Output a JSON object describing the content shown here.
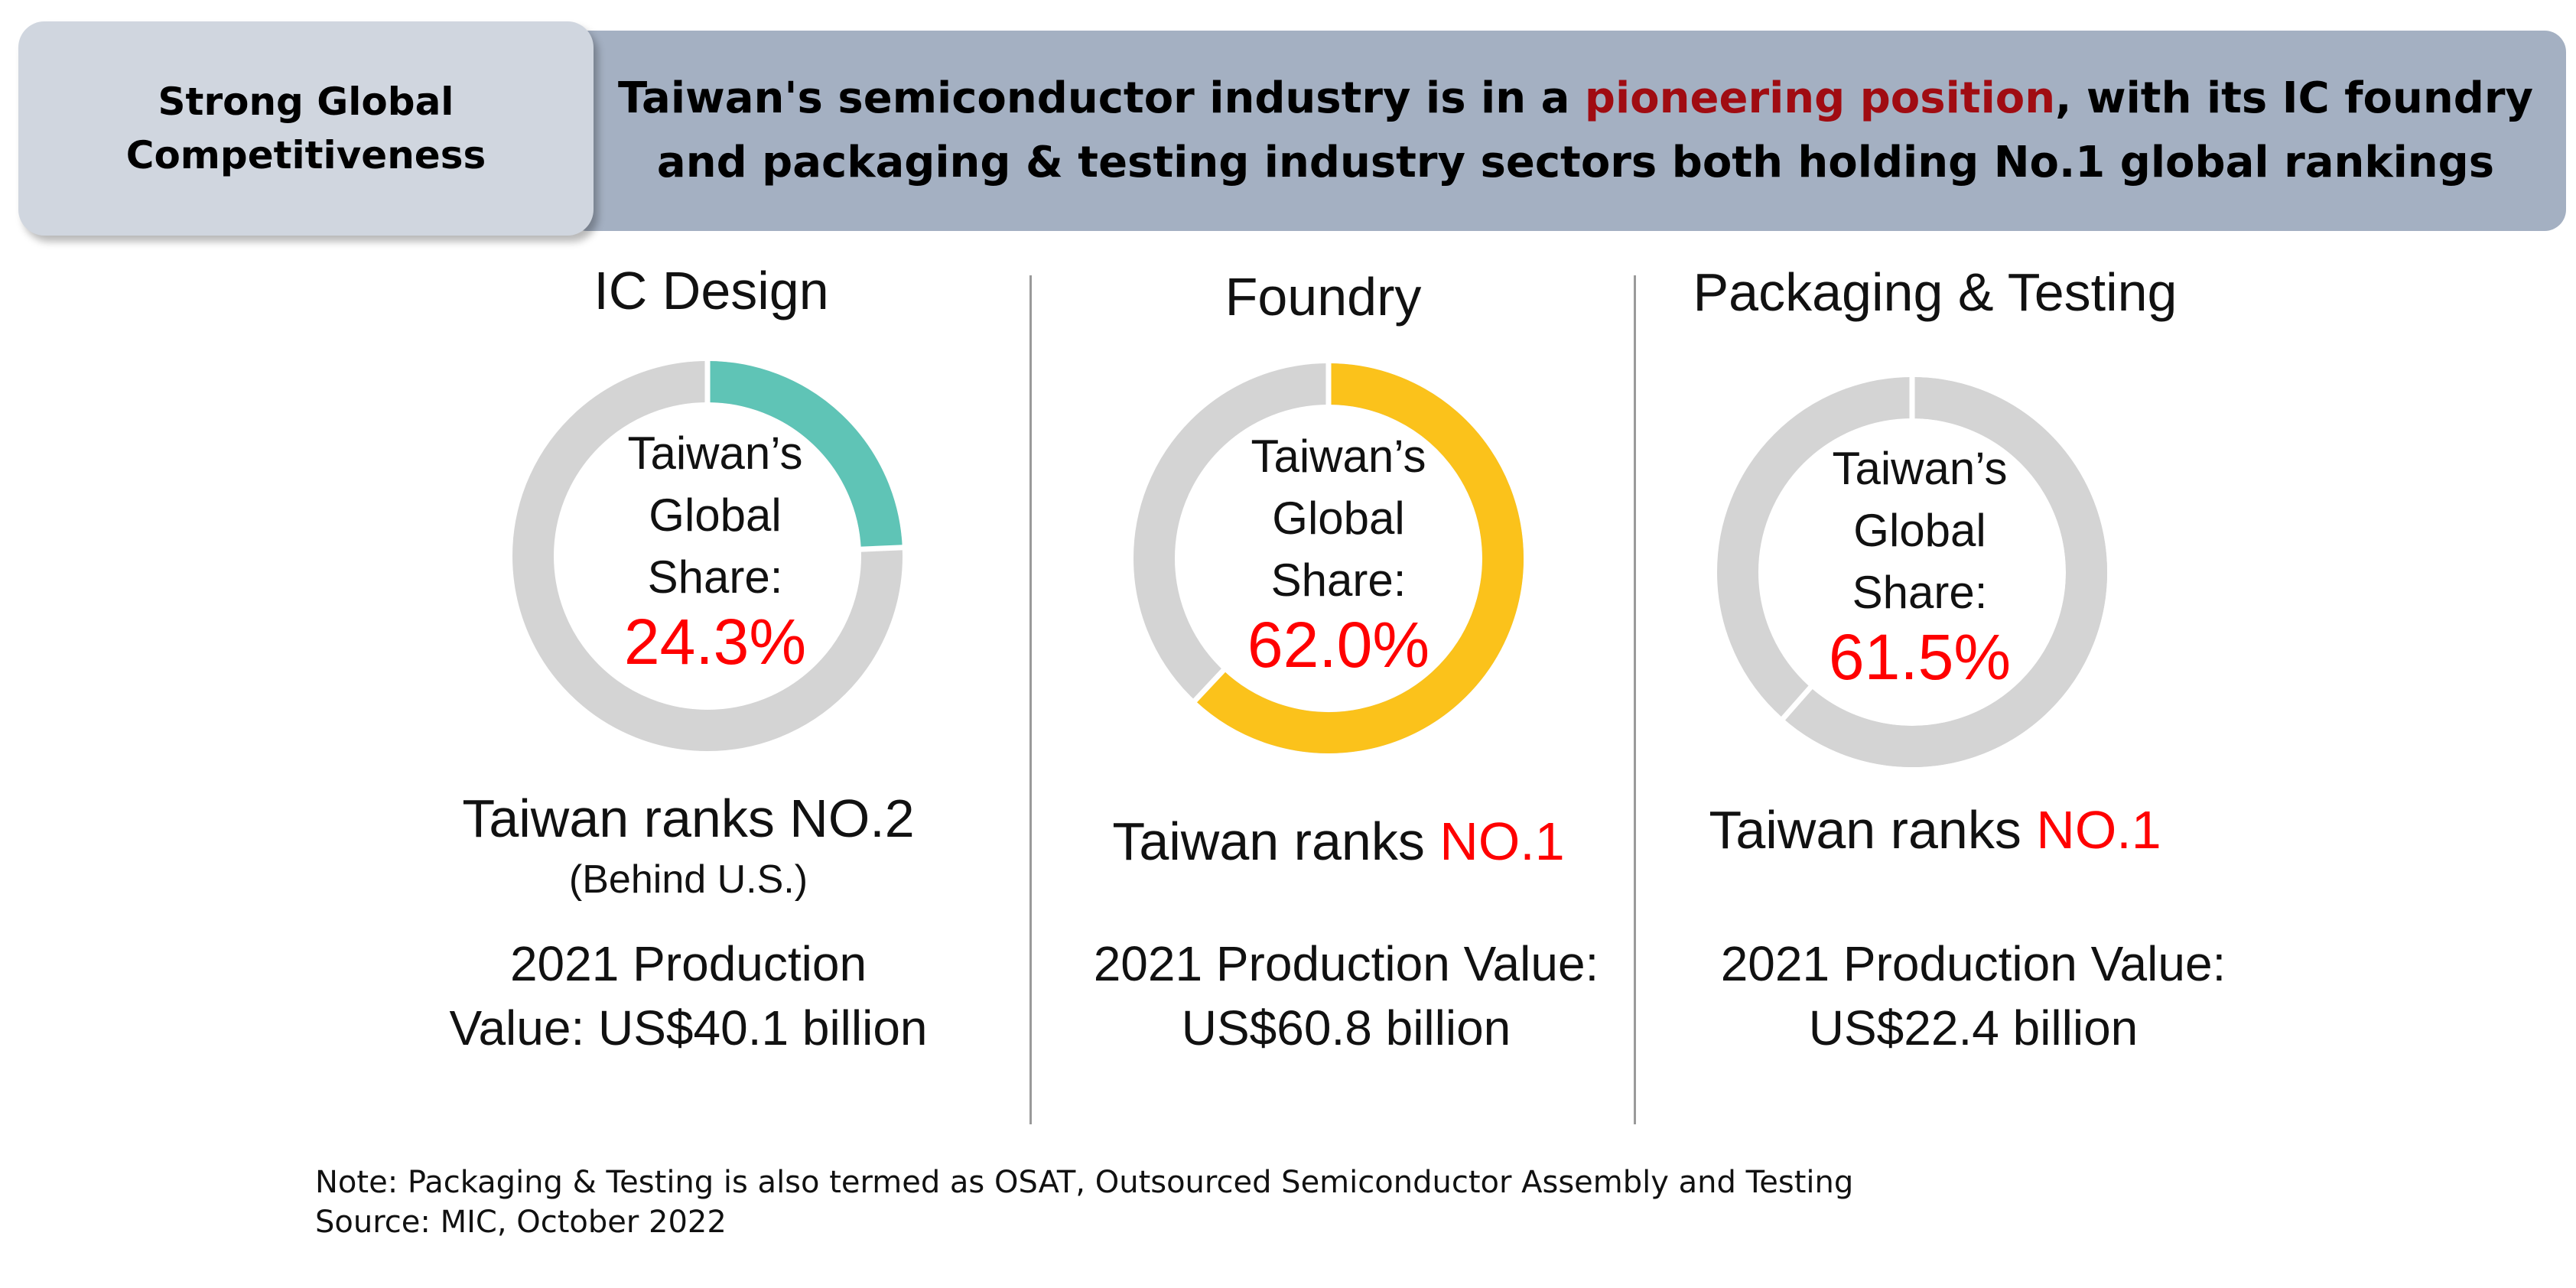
{
  "badge": {
    "line1": "Strong Global",
    "line2": "Competitiveness"
  },
  "headline": {
    "part1": "Taiwan's semiconductor industry is in a ",
    "highlight": "pioneering position",
    "part2": ", with its IC foundry and packaging & testing industry sectors both holding No.1 global rankings",
    "highlight_color": "#a00c12"
  },
  "chart_data": [
    {
      "type": "pie",
      "title": "IC Design",
      "center_label": [
        "Taiwan’s",
        "Global",
        "Share:"
      ],
      "value_label": "24.3%",
      "values": [
        24.3
      ],
      "color": "#5fc4b6",
      "track_color": "#d4d4d4"
    },
    {
      "type": "pie",
      "title": "Foundry",
      "center_label": [
        "Taiwan’s",
        "Global",
        "Share:"
      ],
      "value_label": "62.0%",
      "values": [
        62.0
      ],
      "color": "#fbc21b",
      "track_color": "#d4d4d4"
    },
    {
      "type": "pie",
      "title": "Packaging & Testing",
      "center_label": [
        "Taiwan’s",
        "Global",
        "Share:"
      ],
      "value_label": "61.5%",
      "values": [
        61.5
      ],
      "color": "#d4d4d4",
      "track_color": "#d4d4d4"
    }
  ],
  "columns": [
    {
      "rank_prefix": "Taiwan ranks NO.2",
      "rank_highlight": "",
      "rank_sub": "(Behind U.S.)",
      "prod_line1": "2021 Production",
      "prod_line2": "Value:  US$40.1 billion"
    },
    {
      "rank_prefix": "Taiwan ranks ",
      "rank_highlight": "NO.1",
      "rank_sub": "",
      "prod_line1": "2021 Production Value:",
      "prod_line2": "US$60.8 billion"
    },
    {
      "rank_prefix": "Taiwan ranks ",
      "rank_highlight": "NO.1",
      "rank_sub": "",
      "prod_line1": "2021 Production Value:",
      "prod_line2": "US$22.4 billion"
    }
  ],
  "footer": {
    "note": "Note: Packaging & Testing is also termed as OSAT, Outsourced Semiconductor Assembly and Testing",
    "source": "Source: MIC, October 2022"
  }
}
